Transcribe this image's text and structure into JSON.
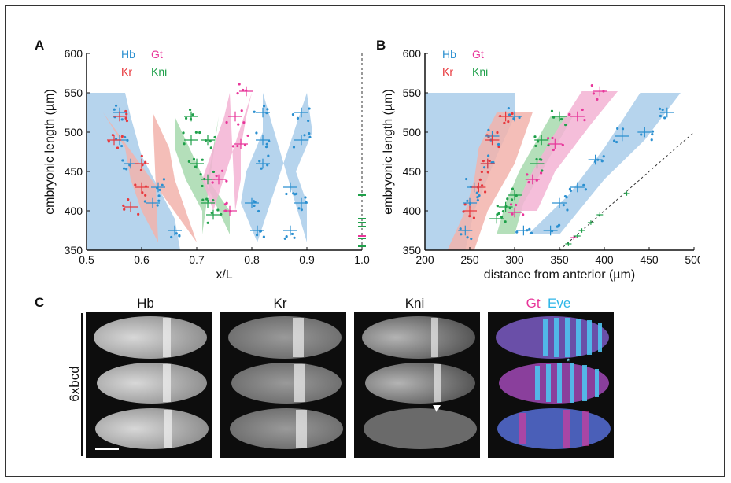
{
  "panels": {
    "a_letter": "A",
    "b_letter": "B",
    "c_letter": "C"
  },
  "legend": {
    "hb": "Hb",
    "gt": "Gt",
    "kr": "Kr",
    "kni": "Kni"
  },
  "colors": {
    "hb": "#2a8fd0",
    "kr": "#e8383d",
    "gt": "#e8369a",
    "kni": "#1fa04a",
    "hb_fill": "#a9cdea",
    "kr_fill": "#f2b3ab",
    "gt_fill": "#f3b3d4",
    "kni_fill": "#a7d9ae"
  },
  "chart_data": [
    {
      "type": "scatter",
      "panel": "A",
      "xlabel": "x/L",
      "ylabel": "embryonic length (µm)",
      "xlim": [
        0.5,
        1.0
      ],
      "ylim": [
        350,
        600
      ],
      "xticks": [
        "0.5",
        "0.6",
        "0.7",
        "0.8",
        "0.9",
        "1.0"
      ],
      "yticks": [
        "350",
        "400",
        "450",
        "500",
        "550",
        "600"
      ],
      "dashed_reference_x": 1.0,
      "bands": [
        {
          "name": "Hb",
          "left": [
            [
              0.5,
              350
            ],
            [
              0.5,
              550
            ]
          ],
          "right": [
            [
              0.57,
              550
            ],
            [
              0.58,
              520
            ],
            [
              0.6,
              470
            ],
            [
              0.63,
              430
            ],
            [
              0.66,
              390
            ],
            [
              0.67,
              350
            ]
          ]
        },
        {
          "name": "Kr",
          "left": [
            [
              0.53,
              525
            ],
            [
              0.57,
              480
            ],
            [
              0.58,
              440
            ],
            [
              0.6,
              400
            ],
            [
              0.63,
              360
            ]
          ],
          "right": [
            [
              0.62,
              525
            ],
            [
              0.65,
              480
            ],
            [
              0.66,
              440
            ],
            [
              0.68,
              400
            ],
            [
              0.7,
              360
            ]
          ]
        },
        {
          "name": "Kni",
          "left": [
            [
              0.66,
              520
            ],
            [
              0.66,
              480
            ],
            [
              0.68,
              440
            ],
            [
              0.71,
              400
            ],
            [
              0.71,
              370
            ]
          ],
          "right": [
            [
              0.74,
              520
            ],
            [
              0.73,
              480
            ],
            [
              0.72,
              440
            ],
            [
              0.76,
              400
            ],
            [
              0.76,
              370
            ]
          ]
        },
        {
          "name": "Gt",
          "left": [
            [
              0.76,
              550
            ],
            [
              0.75,
              520
            ],
            [
              0.73,
              480
            ],
            [
              0.71,
              440
            ],
            [
              0.73,
              400
            ]
          ],
          "right": [
            [
              0.8,
              550
            ],
            [
              0.79,
              520
            ],
            [
              0.78,
              480
            ],
            [
              0.78,
              440
            ],
            [
              0.77,
              400
            ]
          ]
        },
        {
          "name": "Hb",
          "left": [
            [
              0.82,
              550
            ],
            [
              0.82,
              500
            ],
            [
              0.79,
              450
            ],
            [
              0.78,
              410
            ],
            [
              0.81,
              360
            ]
          ],
          "right": [
            [
              0.9,
              550
            ],
            [
              0.91,
              500
            ],
            [
              0.88,
              450
            ],
            [
              0.9,
              410
            ],
            [
              0.9,
              360
            ]
          ]
        }
      ],
      "means": [
        {
          "name": "Hb",
          "points": [
            [
              0.56,
              525
            ],
            [
              0.56,
              490
            ],
            [
              0.58,
              460
            ],
            [
              0.63,
              430
            ],
            [
              0.62,
              410
            ],
            [
              0.66,
              375
            ]
          ]
        },
        {
          "name": "Kr",
          "points": [
            [
              0.56,
              520
            ],
            [
              0.55,
              490
            ],
            [
              0.6,
              460
            ],
            [
              0.6,
              430
            ],
            [
              0.58,
              405
            ]
          ]
        },
        {
          "name": "Kni",
          "points": [
            [
              0.69,
              520
            ],
            [
              0.69,
              490
            ],
            [
              0.72,
              490
            ],
            [
              0.7,
              460
            ],
            [
              0.72,
              440
            ],
            [
              0.72,
              410
            ],
            [
              0.73,
              395
            ]
          ]
        },
        {
          "name": "Gt",
          "points": [
            [
              0.79,
              552
            ],
            [
              0.77,
              520
            ],
            [
              0.78,
              485
            ],
            [
              0.74,
              440
            ],
            [
              0.76,
              400
            ]
          ]
        },
        {
          "name": "Hb",
          "points": [
            [
              0.82,
              525
            ],
            [
              0.89,
              525
            ],
            [
              0.82,
              490
            ],
            [
              0.89,
              490
            ],
            [
              0.82,
              460
            ],
            [
              0.87,
              430
            ],
            [
              0.8,
              410
            ],
            [
              0.89,
              410
            ],
            [
              0.81,
              375
            ],
            [
              0.87,
              375
            ]
          ]
        }
      ],
      "marks_at_1": [
        {
          "name": "Kni",
          "y": [
            420,
            390,
            385,
            380,
            365,
            355
          ]
        },
        {
          "name": "Gt",
          "y": [
            368
          ]
        }
      ]
    },
    {
      "type": "scatter",
      "panel": "B",
      "xlabel": "distance from anterior (µm)",
      "ylabel": "embryonic length (µm)",
      "xlim": [
        200,
        500
      ],
      "ylim": [
        350,
        600
      ],
      "xticks": [
        "200",
        "250",
        "300",
        "350",
        "400",
        "450",
        "500"
      ],
      "yticks": [
        "350",
        "400",
        "450",
        "500",
        "550",
        "600"
      ],
      "dashed_reference_line": [
        [
          350,
          350
        ],
        [
          500,
          500
        ]
      ],
      "bands": [
        {
          "name": "Hb",
          "polygon": [
            [
              200,
              550
            ],
            [
              300,
              550
            ],
            [
              300,
              520
            ],
            [
              280,
              470
            ],
            [
              255,
              400
            ],
            [
              245,
              350
            ],
            [
              200,
              350
            ]
          ]
        },
        {
          "name": "Kr",
          "polygon": [
            [
              280,
              525
            ],
            [
              320,
              525
            ],
            [
              300,
              460
            ],
            [
              270,
              400
            ],
            [
              255,
              350
            ],
            [
              225,
              350
            ],
            [
              245,
              400
            ],
            [
              255,
              440
            ],
            [
              260,
              480
            ]
          ]
        },
        {
          "name": "Kni",
          "polygon": [
            [
              340,
              520
            ],
            [
              365,
              520
            ],
            [
              335,
              460
            ],
            [
              310,
              410
            ],
            [
              300,
              370
            ],
            [
              280,
              370
            ],
            [
              290,
              410
            ],
            [
              305,
              450
            ]
          ]
        },
        {
          "name": "Gt",
          "polygon": [
            [
              375,
              552
            ],
            [
              415,
              552
            ],
            [
              385,
              510
            ],
            [
              345,
              450
            ],
            [
              325,
              400
            ],
            [
              300,
              400
            ],
            [
              315,
              440
            ],
            [
              340,
              490
            ]
          ]
        },
        {
          "name": "Hb",
          "polygon": [
            [
              440,
              550
            ],
            [
              485,
              550
            ],
            [
              445,
              490
            ],
            [
              400,
              440
            ],
            [
              350,
              370
            ],
            [
              315,
              370
            ],
            [
              360,
              420
            ],
            [
              400,
              480
            ]
          ]
        }
      ],
      "means": [
        {
          "name": "Hb",
          "points": [
            [
              300,
              520
            ],
            [
              275,
              495
            ],
            [
              270,
              460
            ],
            [
              255,
              430
            ],
            [
              250,
              410
            ],
            [
              245,
              375
            ]
          ]
        },
        {
          "name": "Kr",
          "points": [
            [
              290,
              520
            ],
            [
              275,
              490
            ],
            [
              270,
              460
            ],
            [
              260,
              430
            ],
            [
              250,
              400
            ]
          ]
        },
        {
          "name": "Kni",
          "points": [
            [
              350,
              520
            ],
            [
              330,
              490
            ],
            [
              325,
              460
            ],
            [
              300,
              420
            ],
            [
              290,
              405
            ],
            [
              280,
              390
            ]
          ]
        },
        {
          "name": "Gt",
          "points": [
            [
              395,
              552
            ],
            [
              370,
              520
            ],
            [
              345,
              485
            ],
            [
              320,
              440
            ],
            [
              300,
              398
            ]
          ]
        },
        {
          "name": "Hb",
          "points": [
            [
              470,
              525
            ],
            [
              445,
              500
            ],
            [
              420,
              495
            ],
            [
              390,
              465
            ],
            [
              370,
              430
            ],
            [
              350,
              410
            ],
            [
              340,
              375
            ],
            [
              310,
              375
            ]
          ]
        }
      ],
      "reference_marks": [
        {
          "name": "Kni",
          "points": [
            [
              360,
              358
            ],
            [
              370,
              368
            ],
            [
              375,
              375
            ],
            [
              385,
              385
            ],
            [
              395,
              395
            ],
            [
              425,
              422
            ]
          ]
        },
        {
          "name": "Gt",
          "points": [
            [
              366,
              366
            ]
          ]
        }
      ]
    }
  ],
  "panel_c": {
    "row_label": "6xbcd",
    "columns": [
      {
        "label": "Hb"
      },
      {
        "label": "Kr"
      },
      {
        "label": "Kni"
      },
      {
        "label_a": "Gt",
        "label_b": "Eve"
      }
    ]
  }
}
